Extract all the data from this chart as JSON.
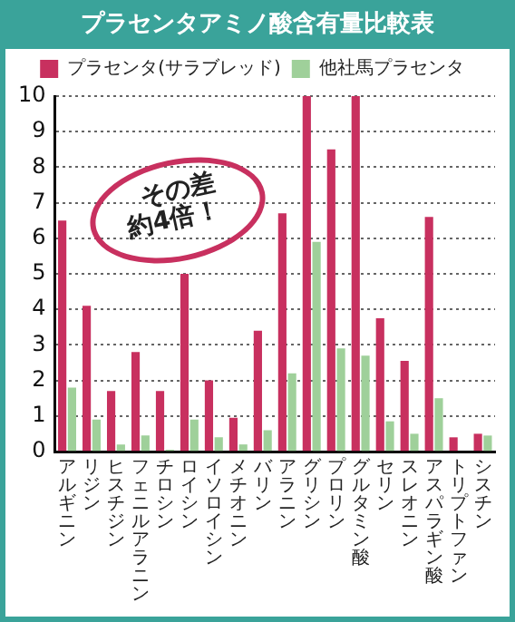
{
  "chart_data": {
    "type": "bar",
    "title": "プラセンタアミノ酸含有量比較表",
    "categories": [
      "アルギニン",
      "リジン",
      "ヒスチジン",
      "フェニルアラニン",
      "チロシン",
      "ロイシン",
      "イソロイシン",
      "メチオニン",
      "バリン",
      "アラニン",
      "グリシン",
      "プロリン",
      "グルタミン酸",
      "セリン",
      "スレオニン",
      "アスパラギン酸",
      "トリプトファン",
      "シスチン"
    ],
    "series": [
      {
        "name": "プラセンタ(サラブレッド)",
        "color": "#c8305f",
        "values": [
          6.5,
          4.1,
          1.7,
          2.8,
          1.7,
          5.0,
          2.0,
          0.95,
          3.4,
          6.7,
          10,
          8.5,
          10,
          3.75,
          2.55,
          6.6,
          0.4,
          0.5
        ]
      },
      {
        "name": "他社馬プラセンタ",
        "color": "#9fd09a",
        "values": [
          1.8,
          0.9,
          0.2,
          0.45,
          0.05,
          0.9,
          0.4,
          0.2,
          0.6,
          2.2,
          5.9,
          2.9,
          2.7,
          0.85,
          0.5,
          1.5,
          0,
          0.45
        ]
      }
    ],
    "ylim": [
      0,
      10
    ],
    "yticks": [
      0,
      1,
      2,
      3,
      4,
      5,
      6,
      7,
      8,
      9,
      10
    ],
    "grid": "y",
    "legend": "top",
    "annotations": [
      "その差",
      "約4倍！"
    ]
  }
}
